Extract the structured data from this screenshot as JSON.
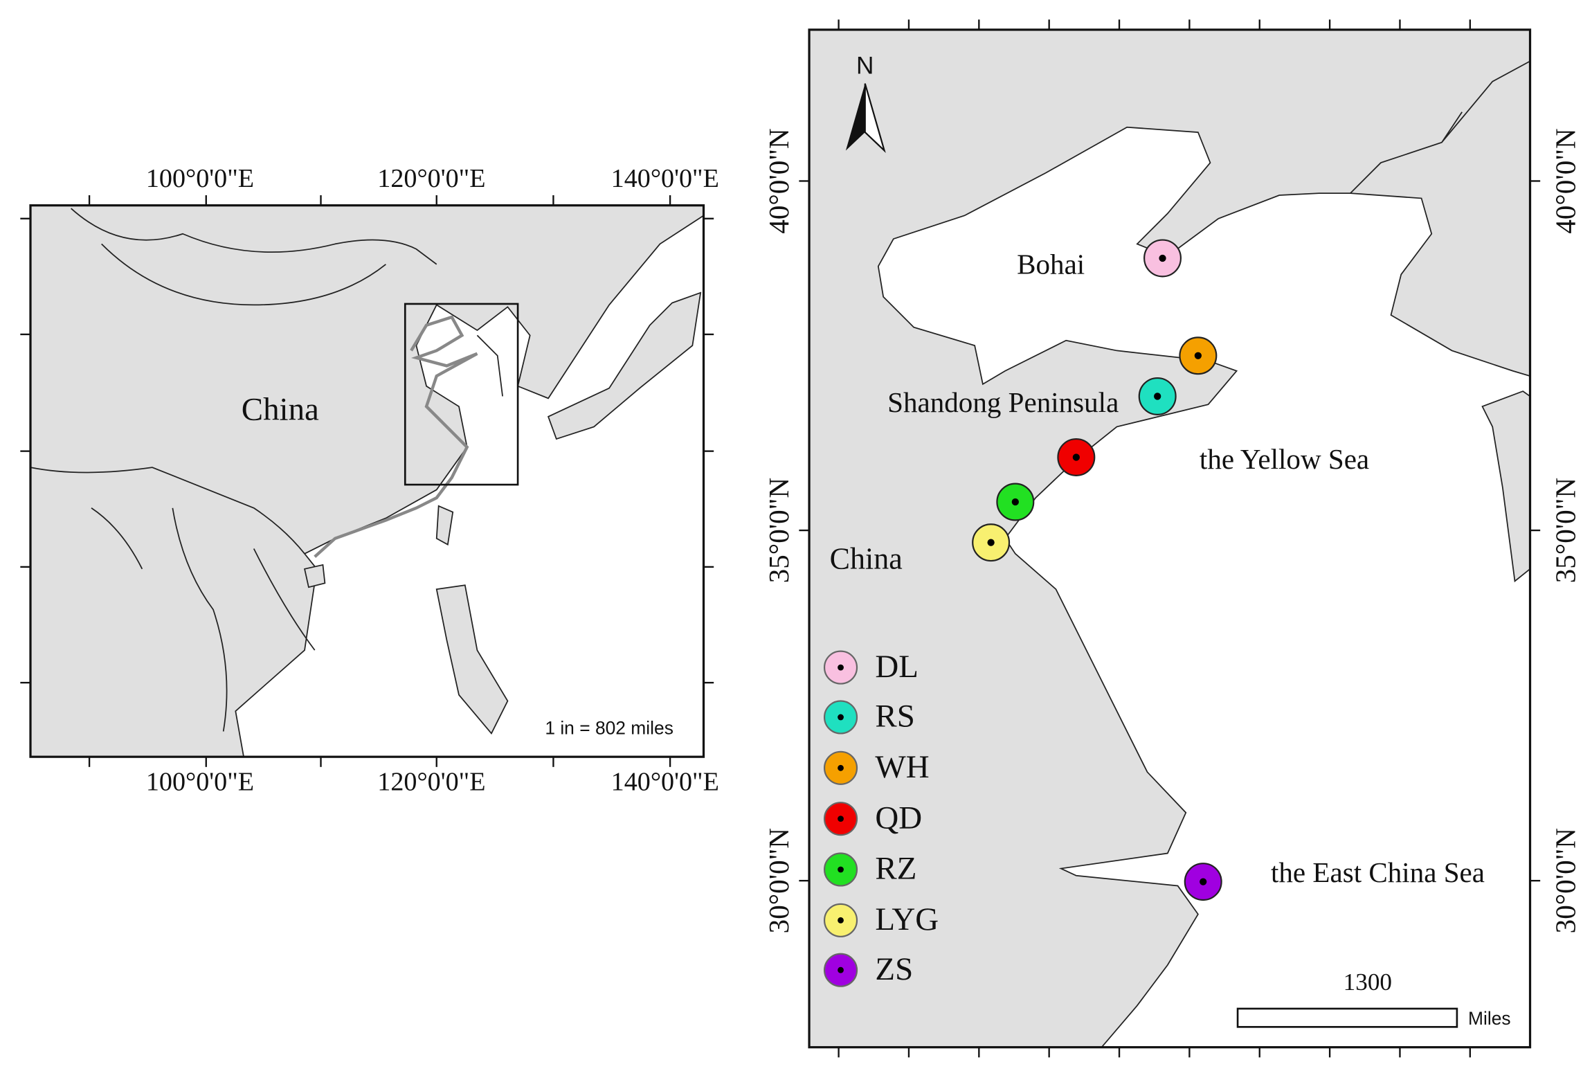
{
  "left_map": {
    "lon_labels": [
      "100°0'0\"E",
      "120°0'0\"E",
      "140°0'0\"E"
    ],
    "label": "China",
    "scale_text": "1 in = 802 miles"
  },
  "right_map": {
    "lat_labels": [
      "40°0'0\"N",
      "35°0'0\"N",
      "30°0'0\"N"
    ],
    "north": "N",
    "places": [
      "Bohai",
      "Shandong Peninsula",
      "the Yellow Sea",
      "China",
      "the East China Sea"
    ],
    "sites": [
      {
        "name": "DL",
        "color": "#f9c0e0"
      },
      {
        "name": "RS",
        "color": "#1fe0c0"
      },
      {
        "name": "WH",
        "color": "#f5a000"
      },
      {
        "name": "QD",
        "color": "#f00000"
      },
      {
        "name": "RZ",
        "color": "#22e022"
      },
      {
        "name": "LYG",
        "color": "#f8f070"
      },
      {
        "name": "ZS",
        "color": "#a000e0"
      }
    ],
    "scale_bar": {
      "value": 1300,
      "unit": "Miles"
    }
  }
}
